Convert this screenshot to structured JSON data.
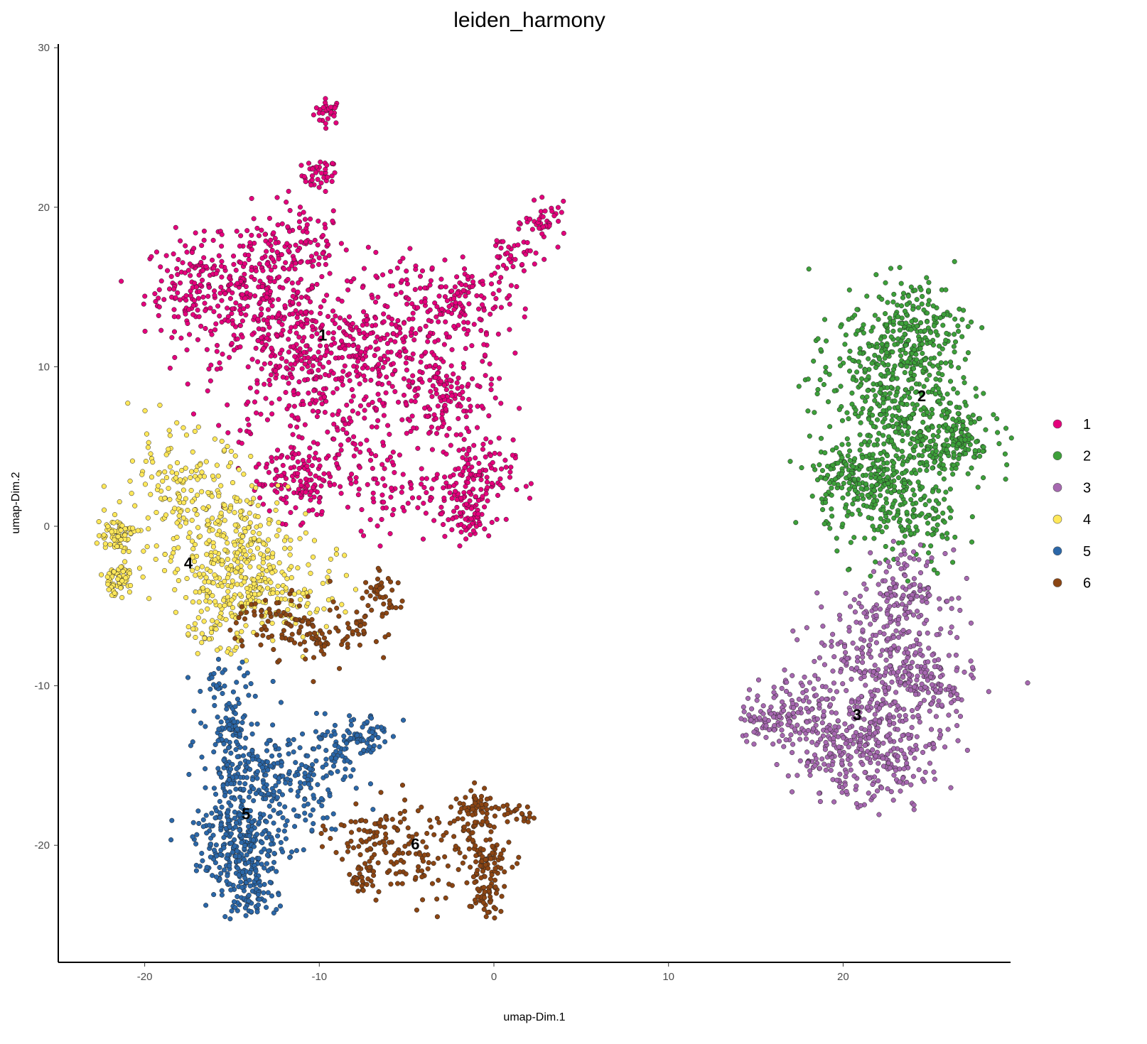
{
  "chart_data": {
    "type": "scatter",
    "title": "leiden_harmony",
    "xlabel": "umap-Dim.1",
    "ylabel": "umap-Dim.2",
    "xlim": [
      -24.9,
      29.6
    ],
    "ylim": [
      -27.3,
      30.3
    ],
    "xticks": [
      -20,
      -10,
      0,
      10,
      20
    ],
    "yticks": [
      -20,
      -10,
      0,
      10,
      20,
      30
    ],
    "grid": false,
    "legend_position": "right",
    "clusters": [
      {
        "name": "1",
        "color": "#E4007C",
        "label_pos": [
          -9.8,
          12
        ],
        "regions": [
          [
            -9.5,
            26,
            0.4,
            30
          ],
          [
            -10,
            22,
            0.5,
            40
          ],
          [
            -11,
            18,
            1.2,
            60
          ],
          [
            -13,
            17,
            1.5,
            60
          ],
          [
            -17,
            15,
            1.5,
            160
          ],
          [
            -13,
            14,
            2,
            200
          ],
          [
            -11,
            10,
            2.5,
            300
          ],
          [
            -7,
            11,
            2,
            150
          ],
          [
            -4,
            13,
            2,
            120
          ],
          [
            -1.5,
            14,
            1.2,
            90
          ],
          [
            1,
            17,
            0.8,
            40
          ],
          [
            3,
            19,
            0.6,
            40
          ],
          [
            -3,
            8,
            1.5,
            150
          ],
          [
            -1.3,
            3,
            1.2,
            120
          ],
          [
            -1.5,
            0.5,
            0.8,
            60
          ],
          [
            -11.5,
            3,
            1.2,
            120
          ],
          [
            -8,
            4,
            1.8,
            80
          ],
          [
            -5,
            2,
            1.5,
            50
          ]
        ]
      },
      {
        "name": "2",
        "color": "#3DA03A",
        "label_pos": [
          24.5,
          8.2
        ],
        "regions": [
          [
            24,
            12.5,
            1.5,
            200
          ],
          [
            22,
            9,
            2,
            250
          ],
          [
            25,
            6,
            1.8,
            250
          ],
          [
            20.5,
            3,
            1.2,
            150
          ],
          [
            23,
            2,
            2,
            150
          ],
          [
            24,
            0,
            1.5,
            80
          ],
          [
            26.5,
            5.5,
            0.6,
            50
          ]
        ]
      },
      {
        "name": "3",
        "color": "#A668B0",
        "label_pos": [
          20.8,
          -11.8
        ],
        "regions": [
          [
            23.5,
            -4,
            1.2,
            120
          ],
          [
            22,
            -8,
            2,
            200
          ],
          [
            24.5,
            -10,
            1.5,
            150
          ],
          [
            20,
            -14,
            1.5,
            200
          ],
          [
            23,
            -14,
            1.5,
            150
          ],
          [
            16,
            -12,
            1,
            90
          ],
          [
            18,
            -11,
            1.2,
            60
          ]
        ]
      },
      {
        "name": "4",
        "color": "#FFE85A",
        "label_pos": [
          -17.5,
          -2.3
        ],
        "regions": [
          [
            -21.7,
            -0.5,
            0.5,
            70
          ],
          [
            -21.5,
            -3.3,
            0.5,
            60
          ],
          [
            -18,
            2,
            2,
            150
          ],
          [
            -15,
            -1,
            2,
            200
          ],
          [
            -14,
            -3.5,
            1.5,
            150
          ],
          [
            -16,
            -6,
            1,
            60
          ],
          [
            -11,
            -4.5,
            1.5,
            60
          ]
        ]
      },
      {
        "name": "5",
        "color": "#2B67A8",
        "label_pos": [
          -14.2,
          -18
        ],
        "regions": [
          [
            -15.5,
            -10,
            0.8,
            40
          ],
          [
            -15,
            -12.8,
            0.6,
            50
          ],
          [
            -14,
            -16,
            1.5,
            200
          ],
          [
            -14.5,
            -20,
            1.3,
            250
          ],
          [
            -14,
            -23,
            0.8,
            80
          ],
          [
            -11,
            -16,
            1.5,
            100
          ],
          [
            -7.5,
            -13,
            0.7,
            60
          ],
          [
            -9.5,
            -14,
            1,
            50
          ]
        ]
      },
      {
        "name": "6",
        "color": "#8B4513",
        "label_pos": [
          -4.5,
          -19.9
        ],
        "regions": [
          [
            -13,
            -6,
            1,
            50
          ],
          [
            -10,
            -7,
            1,
            60
          ],
          [
            -7.5,
            -6,
            0.8,
            40
          ],
          [
            -6.5,
            -4,
            0.6,
            30
          ],
          [
            -7,
            -19.5,
            1.2,
            80
          ],
          [
            -4.5,
            -21,
            1.5,
            80
          ],
          [
            -7.5,
            -22,
            0.5,
            30
          ],
          [
            -1,
            -18,
            0.8,
            80
          ],
          [
            -0.5,
            -21,
            0.7,
            80
          ],
          [
            -0.5,
            -23.5,
            0.5,
            40
          ],
          [
            1.5,
            -18,
            0.4,
            20
          ]
        ]
      }
    ]
  }
}
